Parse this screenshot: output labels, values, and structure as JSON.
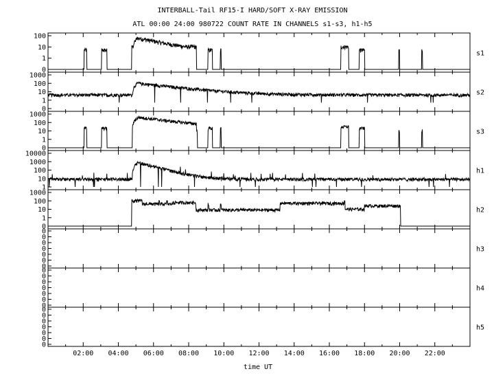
{
  "header": {
    "title": "INTERBALL-Tail RF15-I HARD/SOFT X-RAY EMISSION",
    "subtitle": "ATL 00:00 24:00 980722  COUNT RATE IN CHANNELS s1-s3, h1-h5"
  },
  "chart_data": {
    "type": "line",
    "xlabel": "time UT",
    "xlim_hours": [
      0,
      24
    ],
    "x_ticks": [
      "02:00",
      "04:00",
      "06:00",
      "08:00",
      "10:00",
      "12:00",
      "14:00",
      "16:00",
      "18:00",
      "20:00",
      "22:00"
    ],
    "y_scale": "log",
    "line_color": "#000000",
    "panels": [
      {
        "channel": "s1",
        "y_ticks": [
          "100",
          "10",
          "1",
          "0"
        ],
        "y_ticks_values": [
          100,
          10,
          1,
          0.1
        ],
        "baseline": 0.1,
        "spikes": [
          [
            2.05,
            2.2,
            5
          ],
          [
            3.05,
            3.35,
            5
          ],
          [
            4.75,
            8.45,
            10
          ],
          [
            9.1,
            9.35,
            5
          ],
          [
            9.8,
            9.85,
            5
          ],
          [
            16.65,
            17.1,
            10
          ],
          [
            17.7,
            18.0,
            5
          ],
          [
            19.95,
            20.0,
            5
          ],
          [
            21.25,
            21.3,
            5
          ]
        ],
        "flare": {
          "t0": 4.8,
          "peak_t": 5.1,
          "peak": 60,
          "decay_h": 1.3,
          "floor": 3,
          "end": 8.45
        }
      },
      {
        "channel": "s2",
        "y_ticks": [
          "1000",
          "100",
          "10",
          "1",
          "0"
        ],
        "y_ticks_values": [
          1000,
          100,
          10,
          1,
          0.1
        ],
        "baseline": 4,
        "spikes": [],
        "flare": {
          "t0": 4.8,
          "peak_t": 5.1,
          "peak": 100,
          "decay_h": 1.8,
          "floor": 4,
          "end": 24
        }
      },
      {
        "channel": "s3",
        "y_ticks": [
          "1000",
          "100",
          "10",
          "1",
          "0"
        ],
        "y_ticks_values": [
          1000,
          100,
          10,
          1,
          0.1
        ],
        "baseline": 0.1,
        "spikes": [
          [
            2.05,
            2.2,
            20
          ],
          [
            3.05,
            3.35,
            20
          ],
          [
            8.45,
            8.5,
            10
          ],
          [
            9.1,
            9.35,
            20
          ],
          [
            9.8,
            9.85,
            20
          ],
          [
            16.65,
            17.1,
            30
          ],
          [
            17.7,
            18.0,
            20
          ],
          [
            19.95,
            20.0,
            10
          ],
          [
            21.25,
            21.3,
            10
          ]
        ],
        "flare": {
          "t0": 4.8,
          "peak_t": 5.15,
          "peak": 400,
          "decay_h": 1.6,
          "floor": 20,
          "end": 8.45
        }
      },
      {
        "channel": "h1",
        "y_ticks": [
          "10000",
          "1000",
          "100",
          "10",
          "1"
        ],
        "y_ticks_values": [
          10000,
          1000,
          100,
          10,
          1
        ],
        "baseline": 8,
        "spikes": [],
        "flare": {
          "t0": 4.8,
          "peak_t": 5.1,
          "peak": 800,
          "decay_h": 0.8,
          "floor": 8,
          "end": 24
        }
      },
      {
        "channel": "h2",
        "y_ticks": [
          "1000",
          "100",
          "10",
          "1",
          "0"
        ],
        "y_ticks_values": [
          1000,
          100,
          10,
          1,
          0.1
        ],
        "baseline": 0.1,
        "steps": [
          [
            4.8,
            5.3,
            100
          ],
          [
            5.3,
            6.0,
            40
          ],
          [
            6.0,
            7.1,
            40
          ],
          [
            7.1,
            8.4,
            60
          ],
          [
            8.4,
            9.3,
            8
          ],
          [
            9.3,
            13.2,
            8
          ],
          [
            13.2,
            16.9,
            50
          ],
          [
            16.9,
            18.0,
            10
          ],
          [
            18.0,
            20.0,
            25
          ]
        ],
        "spikes": [
          [
            4.75,
            4.8,
            100
          ],
          [
            5.3,
            5.35,
            100
          ],
          [
            5.6,
            5.65,
            50
          ],
          [
            5.85,
            5.9,
            50
          ],
          [
            6.3,
            6.35,
            80
          ],
          [
            6.75,
            6.8,
            80
          ],
          [
            7.1,
            7.15,
            80
          ],
          [
            9.1,
            9.15,
            40
          ],
          [
            9.8,
            9.85,
            40
          ],
          [
            16.85,
            16.9,
            100
          ],
          [
            20.0,
            20.05,
            25
          ]
        ]
      },
      {
        "channel": "h3",
        "y_ticks": [
          "0",
          "0",
          "0",
          "0",
          "0",
          "0",
          "0"
        ],
        "empty": true
      },
      {
        "channel": "h4",
        "y_ticks": [
          "0",
          "0",
          "0",
          "0",
          "0",
          "0",
          "0"
        ],
        "empty": true
      },
      {
        "channel": "h5",
        "y_ticks": [
          "0",
          "0",
          "0",
          "0",
          "0",
          "0",
          "0"
        ],
        "empty": true
      }
    ]
  }
}
